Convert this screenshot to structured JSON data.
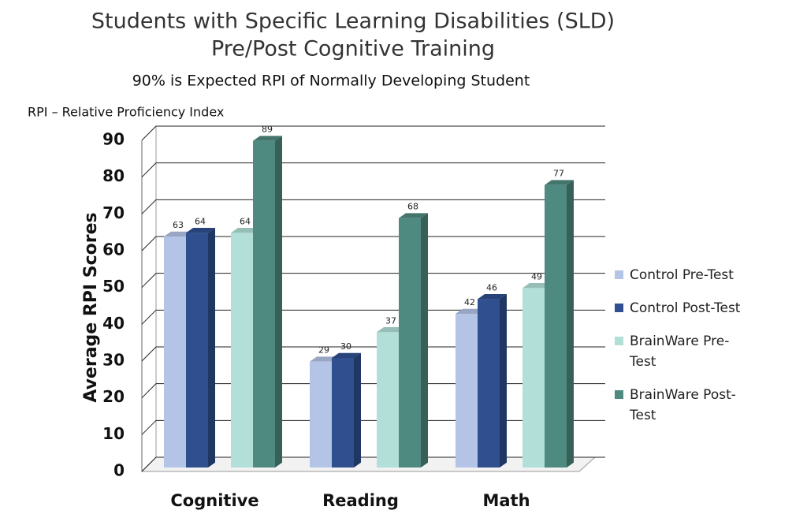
{
  "chart_data": {
    "type": "bar",
    "title": [
      "Students with Specific Learning Disabilities (SLD)",
      "Pre/Post Cognitive Training"
    ],
    "subtitle": "90% is Expected RPI of Normally Developing Student",
    "annotation": "RPI – Relative Proficiency Index",
    "y_label": "Average RPI Scores",
    "categories": [
      "Cognitive",
      "Reading",
      "Math"
    ],
    "series": [
      {
        "name": "Control Pre-Test",
        "color": "#b4c4e6",
        "values": [
          63,
          29,
          42
        ]
      },
      {
        "name": "Control Post-Test",
        "color": "#2f4f8f",
        "values": [
          64,
          30,
          46
        ]
      },
      {
        "name": "BrainWare Pre-Test",
        "color": "#b2dfd8",
        "values": [
          64,
          37,
          49
        ]
      },
      {
        "name": "BrainWare Post-Test",
        "color": "#4f8a80",
        "values": [
          89,
          68,
          77
        ]
      }
    ],
    "ylim": [
      0,
      90
    ],
    "yticks": [
      0,
      10,
      20,
      30,
      40,
      50,
      60,
      70,
      80,
      90
    ],
    "grid": true
  }
}
